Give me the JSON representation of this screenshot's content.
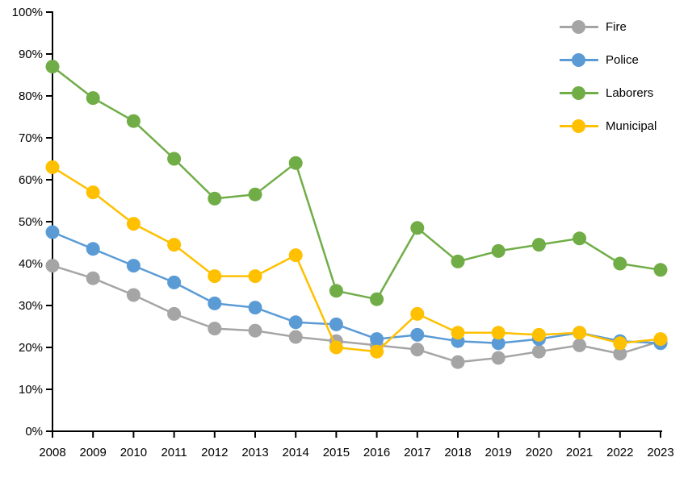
{
  "chart_data": {
    "type": "line",
    "title": "",
    "xlabel": "",
    "ylabel": "",
    "x": [
      2008,
      2009,
      2010,
      2011,
      2012,
      2013,
      2014,
      2015,
      2016,
      2017,
      2018,
      2019,
      2020,
      2021,
      2022,
      2023
    ],
    "series": [
      {
        "name": "Fire",
        "color": "#A5A5A5",
        "values": [
          39.5,
          36.5,
          32.5,
          28,
          24.5,
          24,
          22.5,
          21.5,
          20.5,
          19.5,
          16.5,
          17.5,
          19,
          20.5,
          18.5,
          21.5
        ]
      },
      {
        "name": "Police",
        "color": "#5B9BD5",
        "values": [
          47.5,
          43.5,
          39.5,
          35.5,
          30.5,
          29.5,
          26,
          25.5,
          22,
          23,
          21.5,
          21,
          22,
          23.5,
          21.5,
          21
        ]
      },
      {
        "name": "Laborers",
        "color": "#70AD47",
        "values": [
          87,
          79.5,
          74,
          65,
          55.5,
          56.5,
          64,
          33.5,
          31.5,
          48.5,
          40.5,
          43,
          44.5,
          46,
          40,
          38.5
        ]
      },
      {
        "name": "Municipal",
        "color": "#FFC000",
        "values": [
          63,
          57,
          49.5,
          44.5,
          37,
          37,
          42,
          20,
          19,
          28,
          23.5,
          23.5,
          23,
          23.5,
          21,
          22
        ]
      }
    ],
    "ylim": [
      0,
      100
    ],
    "ytick_step": 10,
    "ytick_format": "percent",
    "grid": false,
    "legend_position": "top-right",
    "axis_color": "#000000",
    "tick_label_color": "#000000"
  }
}
